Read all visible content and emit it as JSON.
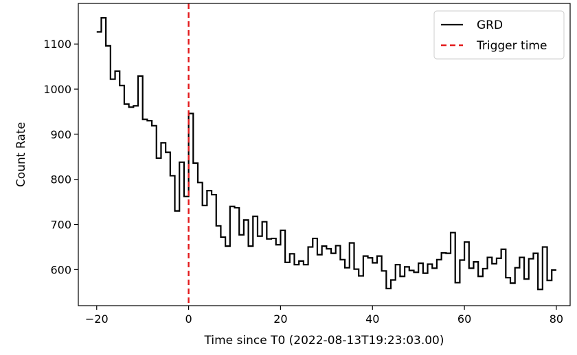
{
  "chart_data": {
    "type": "line",
    "style": "step",
    "xlabel": "Time since T0 (2022-08-13T19:23:03.00)",
    "ylabel": "Count Rate",
    "xlim": [
      -24,
      83
    ],
    "ylim": [
      520,
      1190
    ],
    "xticks": [
      -20,
      0,
      20,
      40,
      60,
      80
    ],
    "xtick_labels": [
      "−20",
      "0",
      "20",
      "40",
      "60",
      "80"
    ],
    "yticks": [
      600,
      700,
      800,
      900,
      1000,
      1100
    ],
    "ytick_labels": [
      "600",
      "700",
      "800",
      "900",
      "1000",
      "1100"
    ],
    "legend_position": "top-right",
    "series": [
      {
        "name": "GRD",
        "color": "#000000",
        "linestyle": "solid",
        "x": [
          -20,
          -19,
          -18,
          -17,
          -16,
          -15,
          -14,
          -13,
          -12,
          -11,
          -10,
          -9,
          -8,
          -7,
          -6,
          -5,
          -4,
          -3,
          -2,
          -1,
          0,
          1,
          2,
          3,
          4,
          5,
          6,
          7,
          8,
          9,
          10,
          11,
          12,
          13,
          14,
          15,
          16,
          17,
          18,
          19,
          20,
          21,
          22,
          23,
          24,
          25,
          26,
          27,
          28,
          29,
          30,
          31,
          32,
          33,
          34,
          35,
          36,
          37,
          38,
          39,
          40,
          41,
          42,
          43,
          44,
          45,
          46,
          47,
          48,
          49,
          50,
          51,
          52,
          53,
          54,
          55,
          56,
          57,
          58,
          59,
          60,
          61,
          62,
          63,
          64,
          65,
          66,
          67,
          68,
          69,
          70,
          71,
          72,
          73,
          74,
          75,
          76,
          77,
          78,
          79
        ],
        "values": [
          1127,
          1158,
          1096,
          1022,
          1040,
          1008,
          967,
          960,
          963,
          1029,
          933,
          930,
          919,
          847,
          881,
          860,
          808,
          730,
          838,
          762,
          946,
          836,
          793,
          742,
          775,
          766,
          697,
          672,
          652,
          740,
          737,
          677,
          710,
          652,
          718,
          674,
          706,
          668,
          669,
          655,
          687,
          616,
          635,
          611,
          619,
          611,
          650,
          669,
          633,
          652,
          646,
          636,
          653,
          622,
          604,
          659,
          601,
          586,
          630,
          626,
          615,
          630,
          597,
          558,
          577,
          611,
          585,
          606,
          598,
          594,
          614,
          592,
          612,
          603,
          622,
          637,
          636,
          682,
          571,
          621,
          661,
          603,
          617,
          585,
          602,
          627,
          613,
          625,
          645,
          582,
          570,
          604,
          627,
          579,
          624,
          636,
          556,
          650,
          576,
          599
        ]
      }
    ],
    "vlines": [
      {
        "name": "Trigger time",
        "x": 0,
        "color": "#e31a1c",
        "linestyle": "dashed"
      }
    ]
  }
}
